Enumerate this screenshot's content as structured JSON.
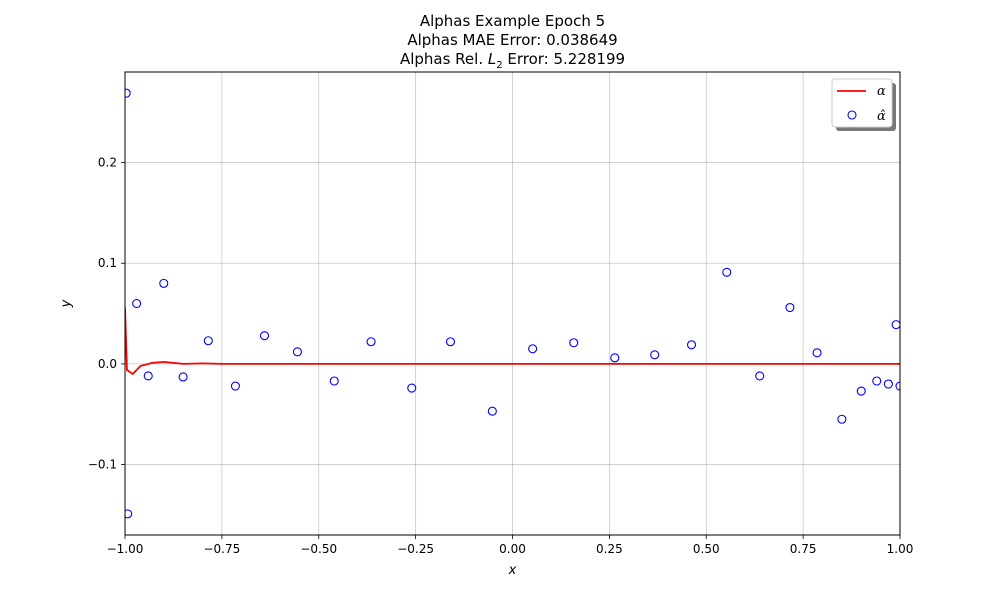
{
  "chart_data": {
    "type": "line",
    "title_lines": [
      "Alphas Example Epoch 5",
      "Alphas MAE Error: 0.038649"
    ],
    "title_l2": {
      "prefix": "Alphas Rel. ",
      "symbol": "L",
      "subscript": "2",
      "suffix": " Error: 5.228199"
    },
    "xlabel": "x",
    "ylabel": "y",
    "xlim": [
      -1.0,
      1.0
    ],
    "ylim": [
      -0.17,
      0.29
    ],
    "xticks": [
      -1.0,
      -0.75,
      -0.5,
      -0.25,
      0.0,
      0.25,
      0.5,
      0.75,
      1.0
    ],
    "xtick_labels": [
      "−1.00",
      "−0.75",
      "−0.50",
      "−0.25",
      "0.00",
      "0.25",
      "0.50",
      "0.75",
      "1.00"
    ],
    "yticks": [
      -0.1,
      0.0,
      0.1,
      0.2
    ],
    "ytick_labels": [
      "−0.1",
      "0.0",
      "0.1",
      "0.2"
    ],
    "grid": true,
    "legend_position": "top-right",
    "series": [
      {
        "name": "α",
        "kind": "line",
        "color": "#ff0000",
        "points": [
          [
            -1.0,
            0.056
          ],
          [
            -0.995,
            -0.006
          ],
          [
            -0.98,
            -0.01
          ],
          [
            -0.96,
            -0.002
          ],
          [
            -0.93,
            0.001
          ],
          [
            -0.9,
            0.002
          ],
          [
            -0.85,
            0.0
          ],
          [
            -0.8,
            0.0005
          ],
          [
            -0.75,
            0.0
          ],
          [
            -0.7,
            0.0
          ],
          [
            -0.6,
            0.0
          ],
          [
            0.0,
            0.0
          ],
          [
            1.0,
            0.0
          ]
        ]
      },
      {
        "name": "α̂",
        "kind": "scatter",
        "color": "#0000ff",
        "points": [
          [
            -0.997,
            0.269
          ],
          [
            -0.993,
            -0.149
          ],
          [
            -0.97,
            0.06
          ],
          [
            -0.94,
            -0.012
          ],
          [
            -0.9,
            0.08
          ],
          [
            -0.85,
            -0.013
          ],
          [
            -0.785,
            0.023
          ],
          [
            -0.715,
            -0.022
          ],
          [
            -0.64,
            0.028
          ],
          [
            -0.555,
            0.012
          ],
          [
            -0.46,
            -0.017
          ],
          [
            -0.365,
            0.022
          ],
          [
            -0.26,
            -0.024
          ],
          [
            -0.16,
            0.022
          ],
          [
            -0.052,
            -0.047
          ],
          [
            0.052,
            0.015
          ],
          [
            0.158,
            0.021
          ],
          [
            0.264,
            0.006
          ],
          [
            0.367,
            0.009
          ],
          [
            0.462,
            0.019
          ],
          [
            0.553,
            0.091
          ],
          [
            0.638,
            -0.012
          ],
          [
            0.716,
            0.056
          ],
          [
            0.786,
            0.011
          ],
          [
            0.85,
            -0.055
          ],
          [
            0.9,
            -0.027
          ],
          [
            0.94,
            -0.017
          ],
          [
            0.97,
            -0.02
          ],
          [
            0.99,
            0.039
          ],
          [
            1.0,
            -0.022
          ]
        ]
      }
    ]
  }
}
